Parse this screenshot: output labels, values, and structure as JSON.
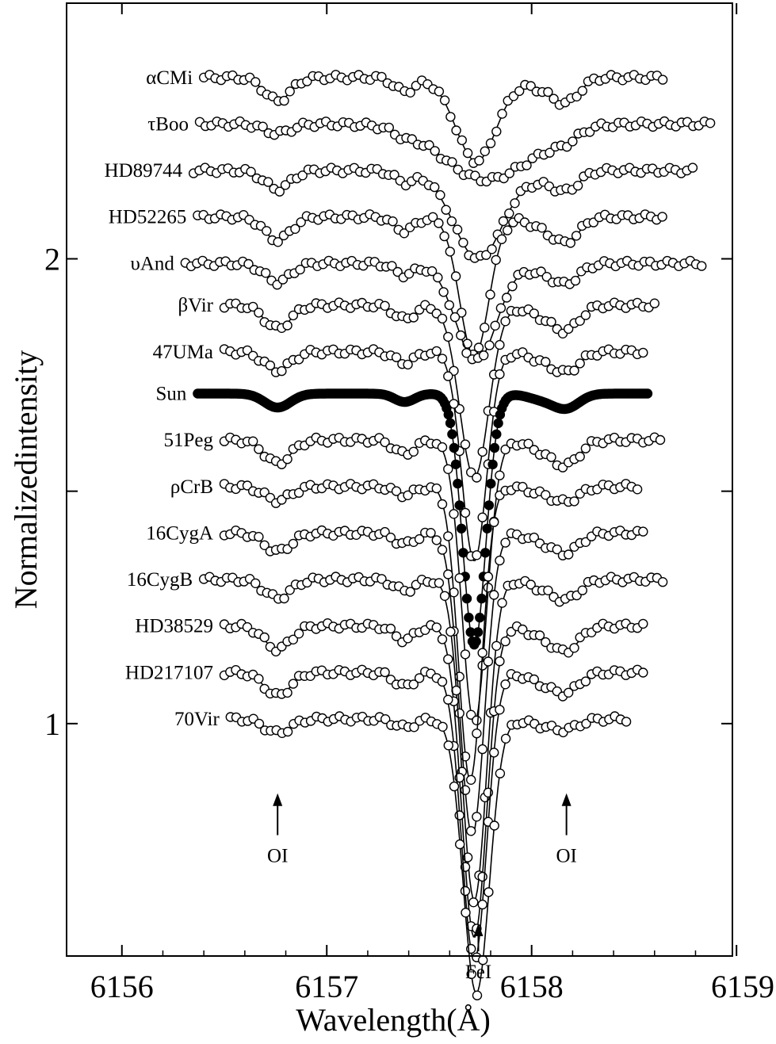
{
  "chart_data": {
    "type": "line",
    "xlabel": "Wavelength(Å)",
    "ylabel": "Normalizedintensity",
    "xlim": [
      6155.73,
      6158.98
    ],
    "ylim": [
      0.5,
      2.55
    ],
    "x_ticks": [
      {
        "value": 6156,
        "label": "6156"
      },
      {
        "value": 6157,
        "label": "6157"
      },
      {
        "value": 6158,
        "label": "6158"
      },
      {
        "value": 6159,
        "label": "6159"
      }
    ],
    "y_ticks": [
      {
        "value": 1.0,
        "label": "1"
      },
      {
        "value": 1.5,
        "label": ""
      },
      {
        "value": 2.0,
        "label": "2"
      },
      {
        "value": 0.5,
        "label": ""
      }
    ],
    "grid": false,
    "legend": "none",
    "line_marker": "open-circle",
    "series": [
      {
        "name": "αCMi",
        "offset": 2.39,
        "x_start": 6156.4,
        "x_end": 6158.66,
        "fe_center": 6157.73,
        "fe_depth": 0.18,
        "fe_width": 0.14,
        "o1_depth": 0.05,
        "o2_depth": 0.05,
        "solid": false
      },
      {
        "name": "τBoo",
        "offset": 2.29,
        "x_start": 6156.38,
        "x_end": 6158.88,
        "fe_center": 6157.78,
        "fe_depth": 0.12,
        "fe_width": 0.3,
        "o1_depth": 0.02,
        "o2_depth": 0.02,
        "solid": false
      },
      {
        "name": "HD89744",
        "offset": 2.19,
        "x_start": 6156.35,
        "x_end": 6158.8,
        "fe_center": 6157.74,
        "fe_depth": 0.19,
        "fe_width": 0.17,
        "o1_depth": 0.04,
        "o2_depth": 0.04,
        "solid": false
      },
      {
        "name": "HD52265",
        "offset": 2.09,
        "x_start": 6156.37,
        "x_end": 6158.65,
        "fe_center": 6157.72,
        "fe_depth": 0.3,
        "fe_width": 0.1,
        "o1_depth": 0.05,
        "o2_depth": 0.05,
        "solid": false
      },
      {
        "name": "υAnd",
        "offset": 1.99,
        "x_start": 6156.31,
        "x_end": 6158.85,
        "fe_center": 6157.73,
        "fe_depth": 0.21,
        "fe_width": 0.14,
        "o1_depth": 0.04,
        "o2_depth": 0.04,
        "solid": false
      },
      {
        "name": "βVir",
        "offset": 1.9,
        "x_start": 6156.5,
        "x_end": 6158.62,
        "fe_center": 6157.72,
        "fe_depth": 0.37,
        "fe_width": 0.1,
        "o1_depth": 0.05,
        "o2_depth": 0.05,
        "solid": false
      },
      {
        "name": "47UMa",
        "offset": 1.8,
        "x_start": 6156.5,
        "x_end": 6158.55,
        "fe_center": 6157.72,
        "fe_depth": 0.45,
        "fe_width": 0.085,
        "o1_depth": 0.04,
        "o2_depth": 0.04,
        "solid": false
      },
      {
        "name": "Sun",
        "offset": 1.71,
        "x_start": 6156.37,
        "x_end": 6158.57,
        "fe_center": 6157.72,
        "fe_depth": 0.54,
        "fe_width": 0.08,
        "o1_depth": 0.03,
        "o2_depth": 0.03,
        "solid": true
      },
      {
        "name": "51Peg",
        "offset": 1.61,
        "x_start": 6156.5,
        "x_end": 6158.65,
        "fe_center": 6157.72,
        "fe_depth": 0.61,
        "fe_width": 0.085,
        "o1_depth": 0.05,
        "o2_depth": 0.05,
        "solid": false
      },
      {
        "name": "ρCrB",
        "offset": 1.51,
        "x_start": 6156.5,
        "x_end": 6158.52,
        "fe_center": 6157.7,
        "fe_depth": 0.63,
        "fe_width": 0.08,
        "o1_depth": 0.03,
        "o2_depth": 0.03,
        "solid": false
      },
      {
        "name": "16CygA",
        "offset": 1.41,
        "x_start": 6156.5,
        "x_end": 6158.55,
        "fe_center": 6157.71,
        "fe_depth": 0.65,
        "fe_width": 0.085,
        "o1_depth": 0.04,
        "o2_depth": 0.04,
        "solid": false
      },
      {
        "name": "16CygB",
        "offset": 1.31,
        "x_start": 6156.4,
        "x_end": 6158.65,
        "fe_center": 6157.72,
        "fe_depth": 0.69,
        "fe_width": 0.085,
        "o1_depth": 0.04,
        "o2_depth": 0.04,
        "solid": false
      },
      {
        "name": "HD38529",
        "offset": 1.21,
        "x_start": 6156.5,
        "x_end": 6158.55,
        "fe_center": 6157.72,
        "fe_depth": 0.67,
        "fe_width": 0.085,
        "o1_depth": 0.05,
        "o2_depth": 0.05,
        "solid": false
      },
      {
        "name": "HD217107",
        "offset": 1.11,
        "x_start": 6156.5,
        "x_end": 6158.55,
        "fe_center": 6157.72,
        "fe_depth": 0.62,
        "fe_width": 0.085,
        "o1_depth": 0.05,
        "o2_depth": 0.04,
        "solid": false
      },
      {
        "name": "70Vir",
        "offset": 1.01,
        "x_start": 6156.53,
        "x_end": 6158.48,
        "fe_center": 6157.73,
        "fe_depth": 0.59,
        "fe_width": 0.09,
        "o1_depth": 0.03,
        "o2_depth": 0.02,
        "solid": false
      }
    ],
    "annotations": [
      {
        "label": "OI",
        "x": 6156.76,
        "arrow_from_y": 0.76,
        "arrow_to_y": 0.85
      },
      {
        "label": "OI",
        "x": 6158.17,
        "arrow_from_y": 0.76,
        "arrow_to_y": 0.85
      },
      {
        "label": "FeI",
        "x": 6157.74,
        "arrow_from_y": 0.51,
        "arrow_to_y": 0.57
      }
    ]
  }
}
